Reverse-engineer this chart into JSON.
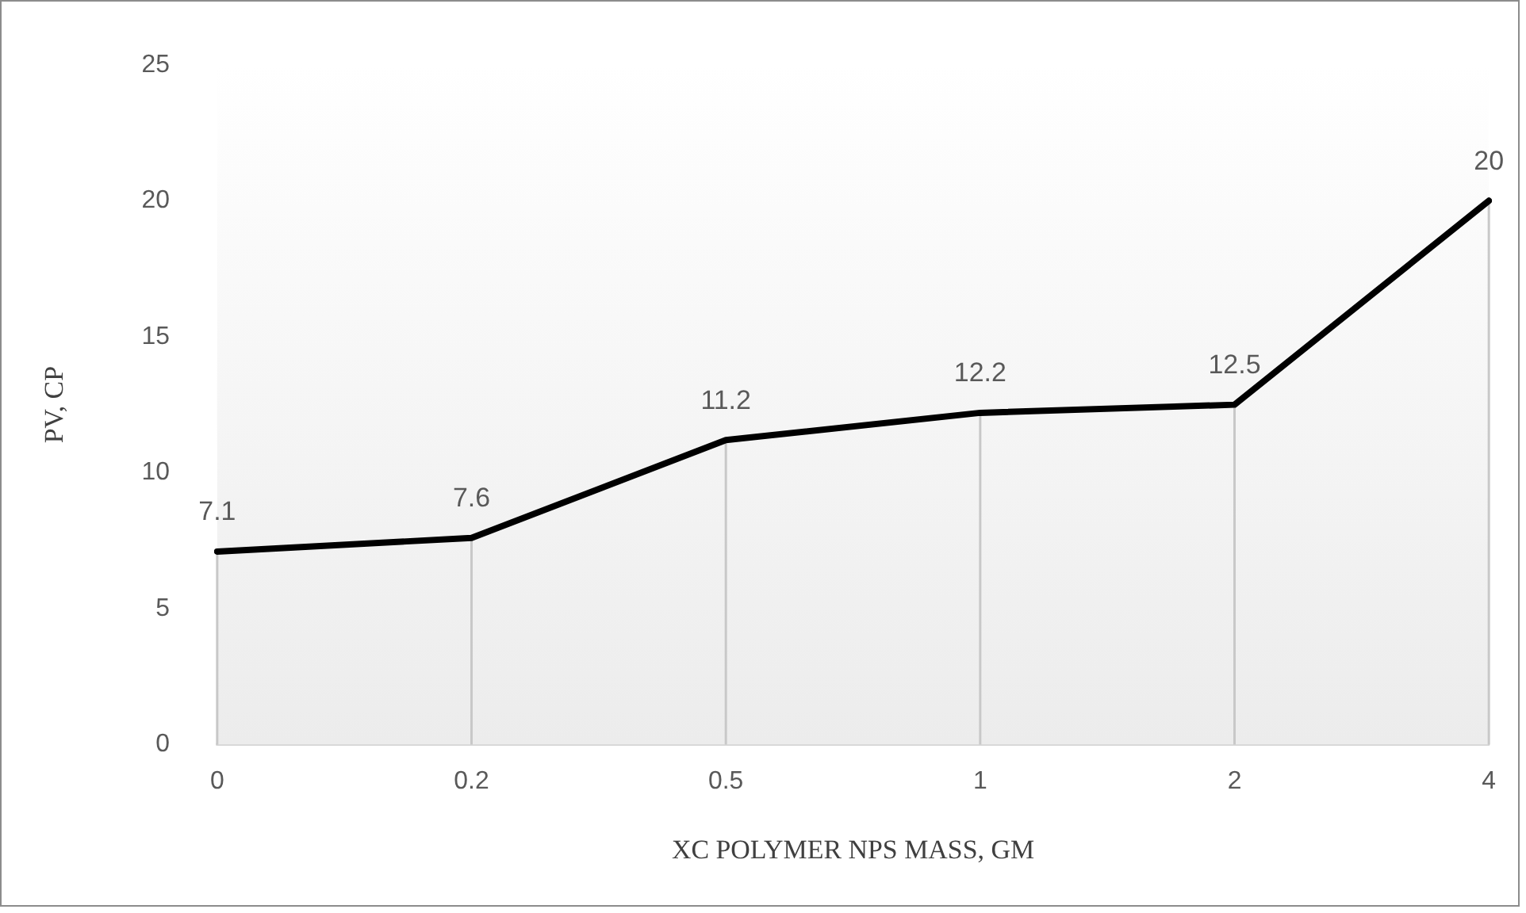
{
  "chart_data": {
    "type": "line",
    "xlabel": "XC POLYMER NPS MASS, GM",
    "ylabel": "PV, CP",
    "categories": [
      "0",
      "0.2",
      "0.5",
      "1",
      "2",
      "4"
    ],
    "series": [
      {
        "color": "#000000",
        "values": [
          7.1,
          7.6,
          11.2,
          12.2,
          12.5,
          20
        ]
      }
    ],
    "ylim": [
      0,
      25
    ],
    "yticks": [
      0,
      5,
      10,
      15,
      20,
      25
    ],
    "grid": false,
    "legend": false,
    "marker": "none",
    "line_style": "solid",
    "data_labels": true
  }
}
